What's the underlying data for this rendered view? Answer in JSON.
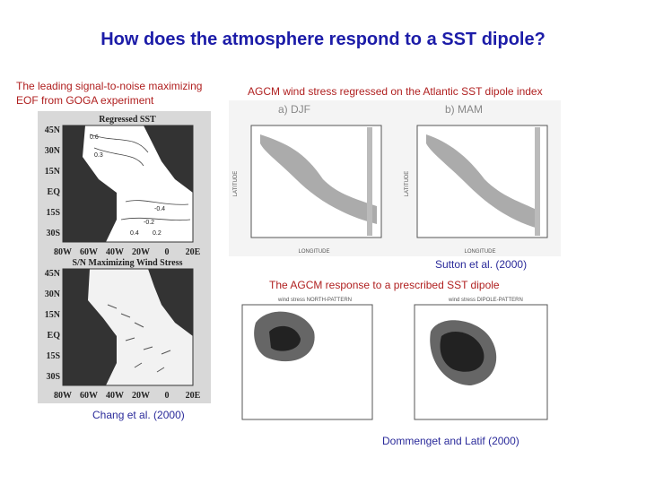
{
  "title": "How does the atmosphere respond to a SST dipole?",
  "left_figure": {
    "caption": [
      "The leading signal-to-noise maximizing",
      "EOF from GOGA experiment"
    ],
    "maps": [
      {
        "title": "Regressed SST",
        "lat_labels": [
          "45N",
          "30N",
          "15N",
          "EQ",
          "15S",
          "30S"
        ],
        "lon_labels": [
          "80W",
          "60W",
          "40W",
          "20W",
          "0",
          "20E"
        ],
        "contour_labels": [
          "0.6",
          "0.3",
          "-0.4",
          "-0.2",
          "0.4",
          "0.2"
        ]
      },
      {
        "title": "S/N Maximizing Wind Stress",
        "lat_labels": [
          "45N",
          "30N",
          "15N",
          "EQ",
          "15S",
          "30S"
        ],
        "lon_labels": [
          "80W",
          "60W",
          "40W",
          "20W",
          "0",
          "20E"
        ]
      }
    ],
    "credit": "Chang et al. (2000)"
  },
  "top_right_figure": {
    "caption": "AGCM wind stress regressed on the Atlantic SST dipole index",
    "panels": [
      {
        "label": "a) DJF",
        "axis_x": "LONGITUDE",
        "axis_y": "LATITUDE"
      },
      {
        "label": "b) MAM",
        "axis_x": "LONGITUDE",
        "axis_y": "LATITUDE"
      }
    ],
    "credit": "Sutton et al. (2000)"
  },
  "bottom_right_figure": {
    "caption": "The AGCM response to a prescribed SST dipole",
    "panels": [
      {
        "label": "wind stress NORTH-PATTERN"
      },
      {
        "label": "wind stress DIPOLE-PATTERN"
      }
    ],
    "credit": "Dommenget and Latif (2000)"
  }
}
